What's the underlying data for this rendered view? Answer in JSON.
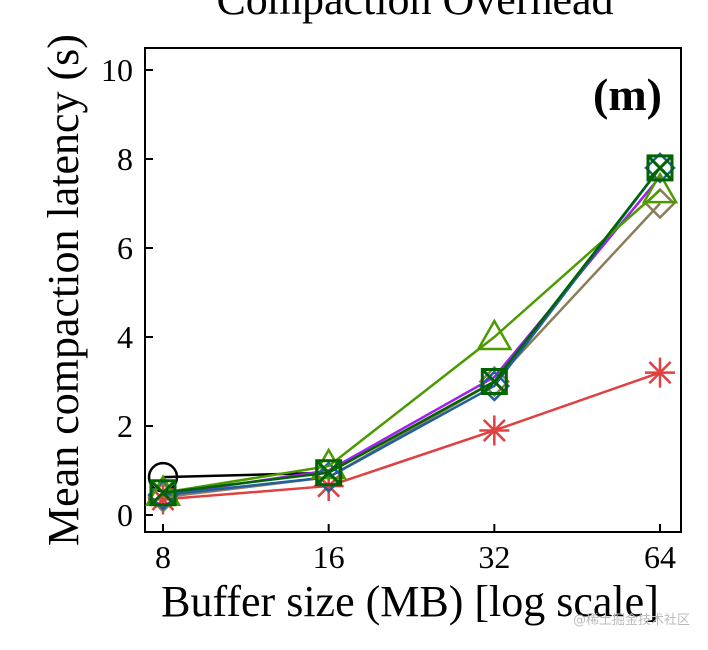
{
  "chart_data": {
    "type": "line",
    "title_clipped": "Compaction Overhead",
    "panel_label": "(m)",
    "xlabel": "Buffer size (MB) [log scale]",
    "ylabel": "Mean compaction latency (s)",
    "x_scale": "log2",
    "categories": [
      "8",
      "16",
      "32",
      "64"
    ],
    "x": [
      8,
      16,
      32,
      64
    ],
    "ylim": [
      0,
      10
    ],
    "yticks": [
      0,
      2,
      4,
      6,
      8,
      10
    ],
    "grid": false,
    "series": [
      {
        "name": "black-circle",
        "marker": "circle",
        "color": "#000000",
        "values": [
          0.85,
          null,
          null,
          null
        ]
      },
      {
        "name": "red-asterisk",
        "marker": "asterisk",
        "color": "#e04040",
        "values": [
          0.35,
          0.65,
          1.9,
          3.2
        ]
      },
      {
        "name": "olive-diamond",
        "marker": "diamond",
        "color": "#8b7d5a",
        "values": [
          0.4,
          0.85,
          3.0,
          7.0
        ]
      },
      {
        "name": "purple-plain",
        "marker": "none",
        "color": "#a020f0",
        "values": [
          0.45,
          1.0,
          3.1,
          7.6
        ]
      },
      {
        "name": "blue-diamond",
        "marker": "diamond",
        "color": "#1f5fa0",
        "values": [
          0.45,
          0.85,
          2.9,
          7.8
        ]
      },
      {
        "name": "green-triangle",
        "marker": "triangle",
        "color": "#4a9a00",
        "values": [
          0.5,
          1.1,
          4.0,
          7.3
        ]
      },
      {
        "name": "dkgreen-boxx",
        "marker": "square-x",
        "color": "#006400",
        "values": [
          0.5,
          0.95,
          3.0,
          7.8
        ]
      }
    ],
    "watermark": "@稀土掘金技术社区"
  }
}
